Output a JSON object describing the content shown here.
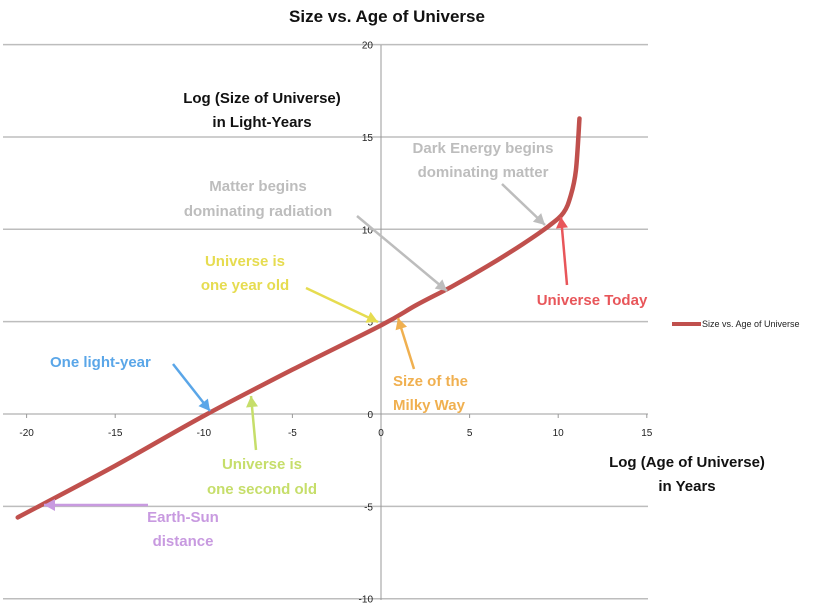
{
  "chart_data": {
    "type": "line",
    "title": "Size vs. Age of Universe",
    "xlabel": [
      "Log (Age of Universe)",
      "in Years"
    ],
    "ylabel": [
      "Log (Size of Universe)",
      "in Light-Years"
    ],
    "xlim": [
      -20,
      15
    ],
    "ylim": [
      -10,
      20
    ],
    "xticks": [
      "-20",
      "-15",
      "-10",
      "-5",
      "0",
      "5",
      "10",
      "15"
    ],
    "yticks": [
      "-10",
      "-5",
      "0",
      "5",
      "10",
      "15",
      "20"
    ],
    "grid": "horizontal",
    "legend_position": "right",
    "series": [
      {
        "name": "Size vs. Age of Universe",
        "color": "#c0504d",
        "x": [
          -20.5,
          -15,
          -10,
          -5,
          0,
          2,
          4,
          6,
          8,
          9.5,
          10.3,
          10.7,
          11.0,
          11.2
        ],
        "y": [
          -5.6,
          -2.8,
          -0.1,
          2.4,
          4.8,
          5.9,
          6.9,
          8.0,
          9.2,
          10.2,
          10.9,
          11.8,
          13.2,
          16.0
        ]
      }
    ],
    "annotations": [
      {
        "lines": [
          "Matter begins",
          "dominating radiation"
        ],
        "color": "#bdbdbd"
      },
      {
        "lines": [
          "Dark Energy begins",
          "dominating matter"
        ],
        "color": "#bdbdbd"
      },
      {
        "lines": [
          "Universe is",
          "one year old"
        ],
        "color": "#e6dc50"
      },
      {
        "lines": [
          "Universe Today"
        ],
        "color": "#e8565a"
      },
      {
        "lines": [
          "Size of the",
          "Milky Way"
        ],
        "color": "#f0b050"
      },
      {
        "lines": [
          "One light-year"
        ],
        "color": "#5aa6e8"
      },
      {
        "lines": [
          "Universe is",
          "one second old"
        ],
        "color": "#c6de6a"
      },
      {
        "lines": [
          "Earth-Sun",
          "distance"
        ],
        "color": "#c89ae0"
      }
    ]
  }
}
